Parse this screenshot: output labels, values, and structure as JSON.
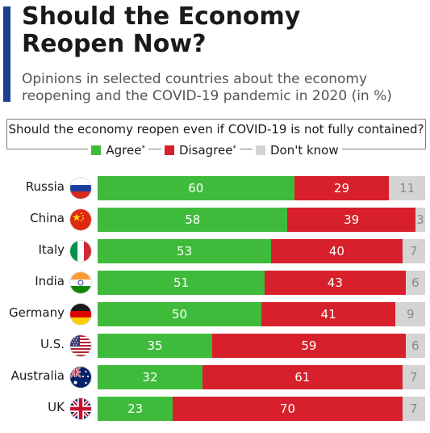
{
  "header": {
    "title": "Should the Economy\nReopen Now?",
    "subtitle": "Opinions in selected countries about the economy\nreopening and the COVID-19 pandemic in 2020 (in %)",
    "question": "Should the economy reopen even if COVID-19 is not fully contained?"
  },
  "legend": {
    "agree": "Agree",
    "disagree": "Disagree",
    "dontknow": "Don't know",
    "asterisk": "*"
  },
  "colors": {
    "accent": "#1d3f8f",
    "agree": "#3fbb3c",
    "disagree": "#d7202b",
    "dontknow": "#d4d4d4"
  },
  "chart_data": {
    "type": "bar",
    "stacked": true,
    "orientation": "horizontal",
    "categories": [
      "Russia",
      "China",
      "Italy",
      "India",
      "Germany",
      "U.S.",
      "Australia",
      "UK"
    ],
    "flags": [
      "russia-flag",
      "china-flag",
      "italy-flag",
      "india-flag",
      "germany-flag",
      "us-flag",
      "australia-flag",
      "uk-flag"
    ],
    "series": [
      {
        "name": "Agree",
        "values": [
          60,
          58,
          53,
          51,
          50,
          35,
          32,
          23
        ]
      },
      {
        "name": "Disagree",
        "values": [
          29,
          39,
          40,
          43,
          41,
          59,
          61,
          70
        ]
      },
      {
        "name": "Don't know",
        "values": [
          11,
          3,
          7,
          6,
          9,
          6,
          7,
          7
        ]
      }
    ],
    "xlim": [
      0,
      100
    ],
    "legend_position": "top"
  }
}
